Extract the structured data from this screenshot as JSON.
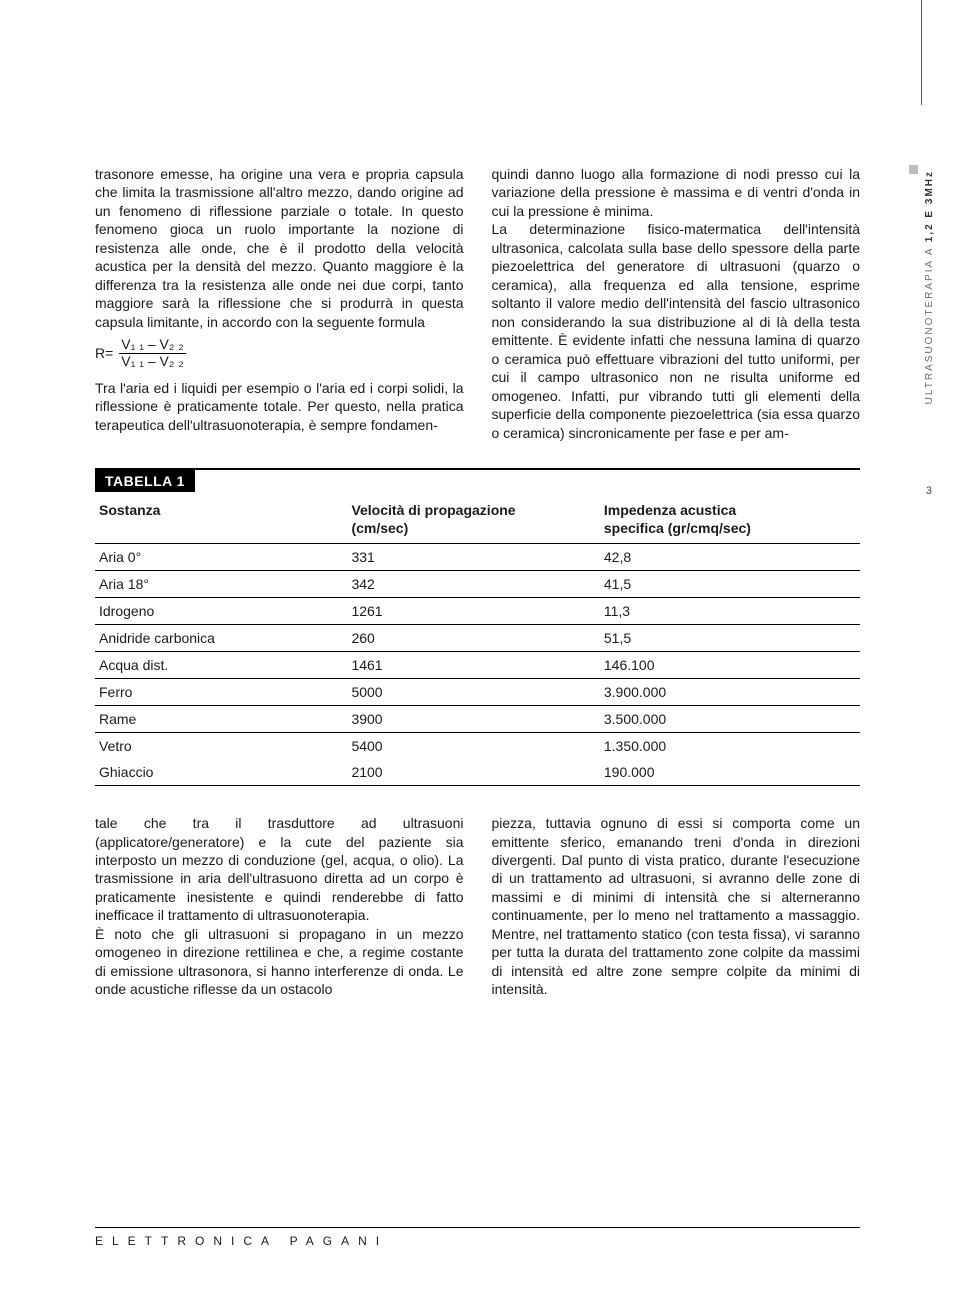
{
  "side": {
    "label_light": "ULTRASUONOTERAPIA A ",
    "label_bold": "1,2 E 3MHz",
    "page_number": "3"
  },
  "col1": {
    "p1": "trasonore emesse, ha origine una vera e propria capsula che limita la trasmissione all'altro mezzo, dando origine ad un fenomeno di riflessione parziale o totale. In questo fenomeno gioca un ruolo importante la nozione di resistenza alle onde, che è il prodotto della velocità acustica per la densità del mezzo. Quanto maggiore è la differenza tra la resistenza alle onde nei due corpi, tanto maggiore sarà la riflessione che si produrrà in questa capsula limitante, in accordo con la seguente formula",
    "formula_lhs": "R=",
    "formula_num": "V₁ ₁ – V₂ ₂",
    "formula_den": "V₁ ₁ – V₂ ₂",
    "p2": "Tra l'aria ed i liquidi per esempio o l'aria ed i corpi solidi, la riflessione è praticamente totale. Per questo, nella pratica terapeutica dell'ultrasuonoterapia, è sempre fondamen-"
  },
  "col2": {
    "p1": "quindi danno luogo alla formazione di nodi presso cui la variazione della pressione è massima e di ventri d'onda in cui la pressione è minima.",
    "p2": "La determinazione fisico-matermatica dell'intensità ultrasonica, calcolata sulla base dello spessore della parte piezoelettrica del generatore di ultrasuoni (quarzo o ceramica), alla frequenza ed alla tensione, esprime soltanto il valore medio dell'intensità del fascio ultrasonico non considerando la sua distribuzione al di là della testa emittente. È evidente infatti che nessuna lamina di quarzo o ceramica può effettuare vibrazioni del tutto uniformi, per cui il campo ultrasonico non ne risulta uniforme ed omogeneo. Infatti, pur vibrando tutti gli elementi della superficie della componente piezoelettrica (sia essa quarzo o ceramica) sincronicamente per fase e per am-"
  },
  "table": {
    "title": "TABELLA 1",
    "headers": {
      "c1": "Sostanza",
      "c2": "Velocità di propagazione\n(cm/sec)",
      "c3": "Impedenza acustica\nspecifica (gr/cmq/sec)"
    },
    "rows": [
      {
        "c1": "Aria 0°",
        "c2": "331",
        "c3": "42,8"
      },
      {
        "c1": "Aria 18°",
        "c2": "342",
        "c3": "41,5"
      },
      {
        "c1": "Idrogeno",
        "c2": "1261",
        "c3": "11,3"
      },
      {
        "c1": "Anidride carbonica",
        "c2": "260",
        "c3": "51,5"
      },
      {
        "c1": "Acqua dist.",
        "c2": "1461",
        "c3": "146.100"
      },
      {
        "c1": "Ferro",
        "c2": "5000",
        "c3": "3.900.000"
      },
      {
        "c1": "Rame",
        "c2": "3900",
        "c3": "3.500.000"
      }
    ],
    "last_rows": [
      {
        "c1": "Vetro",
        "c2": "5400",
        "c3": "1.350.000"
      },
      {
        "c1": "Ghiaccio",
        "c2": "2100",
        "c3": "190.000"
      }
    ]
  },
  "col3": {
    "p1": "tale che tra il trasduttore ad ultrasuoni (applicatore/generatore) e la cute del paziente sia interposto un mezzo di conduzione (gel, acqua, o olio). La trasmissione in aria dell'ultrasuono diretta ad un corpo è praticamente inesistente e quindi renderebbe di fatto inefficace il trattamento di ultrasuonoterapia.",
    "p2": "È noto che gli ultrasuoni si propagano in un mezzo omogeneo in direzione rettilinea e che, a regime costante di emissione ultrasonora, si hanno interferenze di onda. Le onde acustiche riflesse da un ostacolo"
  },
  "col4": {
    "p1": "piezza, tuttavia ognuno di essi si comporta come un emittente sferico, emanando treni d'onda in direzioni divergenti. Dal punto di vista pratico, durante l'esecuzione di un trattamento ad ultrasuoni, si avranno delle zone di massimi e di minimi di intensità che si alterneranno continuamente, per lo meno nel trattamento a massaggio. Mentre, nel trattamento statico (con testa fissa), vi saranno per tutta la durata del trattamento zone colpite da massimi di intensità ed altre zone sempre colpite da minimi di intensità."
  },
  "footer": {
    "text": "ELETTRONICA PAGANI"
  }
}
